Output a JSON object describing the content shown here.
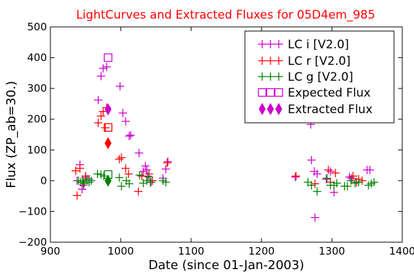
{
  "chart_data": {
    "type": "scatter",
    "title": "LightCurves and Extracted Fluxes for 05D4em_985",
    "title_color": "#ff0000",
    "xlabel": "Date (since 01-Jan-2003)",
    "ylabel": "Flux (ZP_ab=30.)",
    "xlim": [
      900,
      1400
    ],
    "ylim": [
      -200,
      500
    ],
    "xticks": [
      900,
      1000,
      1100,
      1200,
      1300,
      1400
    ],
    "yticks": [
      -200,
      -100,
      0,
      100,
      200,
      300,
      400,
      500
    ],
    "grid": false,
    "legend_position": "top-right",
    "series": [
      {
        "name": "LC i [V2.0]",
        "marker": "plus",
        "color": "#cc00cc",
        "points": [
          [
            938,
            0
          ],
          [
            942,
            52
          ],
          [
            945,
            -28
          ],
          [
            947,
            -15
          ],
          [
            950,
            10
          ],
          [
            955,
            5
          ],
          [
            968,
            262
          ],
          [
            972,
            340
          ],
          [
            975,
            365
          ],
          [
            980,
            370
          ],
          [
            999,
            307
          ],
          [
            1003,
            220
          ],
          [
            1007,
            193
          ],
          [
            1012,
            145
          ],
          [
            1014,
            148
          ],
          [
            1026,
            90
          ],
          [
            1032,
            30
          ],
          [
            1035,
            48
          ],
          [
            1037,
            35
          ],
          [
            1038,
            15
          ],
          [
            1042,
            -5
          ],
          [
            1060,
            8
          ],
          [
            1064,
            38
          ],
          [
            1067,
            62
          ],
          [
            1248,
            12
          ],
          [
            1270,
            183
          ],
          [
            1271,
            67
          ],
          [
            1275,
            30
          ],
          [
            1276,
            -120
          ],
          [
            1279,
            22
          ],
          [
            1292,
            5
          ],
          [
            1298,
            30
          ],
          [
            1303,
            -38
          ],
          [
            1325,
            12
          ],
          [
            1328,
            8
          ],
          [
            1350,
            35
          ],
          [
            1354,
            35
          ]
        ]
      },
      {
        "name": "LC r [V2.0]",
        "marker": "plus",
        "color": "#ff0000",
        "points": [
          [
            936,
            32
          ],
          [
            938,
            -48
          ],
          [
            942,
            40
          ],
          [
            946,
            -5
          ],
          [
            950,
            15
          ],
          [
            968,
            188
          ],
          [
            972,
            210
          ],
          [
            975,
            225
          ],
          [
            978,
            172
          ],
          [
            980,
            238
          ],
          [
            998,
            70
          ],
          [
            1001,
            75
          ],
          [
            1007,
            40
          ],
          [
            1011,
            22
          ],
          [
            1025,
            -35
          ],
          [
            1030,
            15
          ],
          [
            1040,
            22
          ],
          [
            1045,
            0
          ],
          [
            1066,
            58
          ],
          [
            1249,
            15
          ],
          [
            1276,
            -10
          ],
          [
            1295,
            35
          ],
          [
            1298,
            -5
          ],
          [
            1305,
            25
          ],
          [
            1330,
            15
          ],
          [
            1335,
            -5
          ],
          [
            1338,
            5
          ],
          [
            1343,
            0
          ]
        ]
      },
      {
        "name": "LC g [V2.0]",
        "marker": "plus",
        "color": "#008000",
        "points": [
          [
            940,
            0
          ],
          [
            943,
            -5
          ],
          [
            946,
            0
          ],
          [
            948,
            -10
          ],
          [
            952,
            5
          ],
          [
            955,
            -5
          ],
          [
            958,
            0
          ],
          [
            967,
            22
          ],
          [
            972,
            20
          ],
          [
            976,
            15
          ],
          [
            998,
            10
          ],
          [
            1001,
            -18
          ],
          [
            1008,
            0
          ],
          [
            1012,
            -10
          ],
          [
            1027,
            18
          ],
          [
            1032,
            -8
          ],
          [
            1037,
            0
          ],
          [
            1040,
            12
          ],
          [
            1043,
            -5
          ],
          [
            1060,
            0
          ],
          [
            1064,
            -5
          ],
          [
            1266,
            -5
          ],
          [
            1271,
            -15
          ],
          [
            1279,
            -35
          ],
          [
            1293,
            8
          ],
          [
            1298,
            -15
          ],
          [
            1303,
            -15
          ],
          [
            1307,
            -8
          ],
          [
            1318,
            -18
          ],
          [
            1322,
            -18
          ],
          [
            1327,
            0
          ],
          [
            1333,
            -8
          ],
          [
            1338,
            -5
          ],
          [
            1352,
            -15
          ],
          [
            1356,
            -10
          ],
          [
            1360,
            -5
          ]
        ]
      },
      {
        "name": "Expected Flux",
        "marker": "square",
        "color": "#cc00cc",
        "points": [
          [
            982,
            400
          ]
        ]
      },
      {
        "name": "Expected Flux (r)",
        "marker": "square",
        "color": "#ff0000",
        "points": [
          [
            982,
            173
          ]
        ]
      },
      {
        "name": "Expected Flux (g)",
        "marker": "square",
        "color": "#008000",
        "points": [
          [
            982,
            20
          ]
        ]
      },
      {
        "name": "Extracted Flux",
        "marker": "diamond",
        "color": "#cc00cc",
        "points": [
          [
            982,
            232
          ]
        ]
      },
      {
        "name": "Extracted Flux (r)",
        "marker": "diamond",
        "color": "#ff0000",
        "points": [
          [
            982,
            122
          ]
        ]
      },
      {
        "name": "Extracted Flux (g)",
        "marker": "diamond",
        "color": "#008000",
        "points": [
          [
            982,
            0
          ]
        ]
      }
    ],
    "legend": [
      {
        "label": "LC i [V2.0]",
        "marker": "plus",
        "color": "#cc00cc"
      },
      {
        "label": "LC r [V2.0]",
        "marker": "plus",
        "color": "#ff0000"
      },
      {
        "label": "LC g [V2.0]",
        "marker": "plus",
        "color": "#008000"
      },
      {
        "label": "Expected Flux",
        "marker": "square",
        "color": "#cc00cc"
      },
      {
        "label": "Extracted Flux",
        "marker": "diamond",
        "color": "#cc00cc"
      }
    ]
  }
}
